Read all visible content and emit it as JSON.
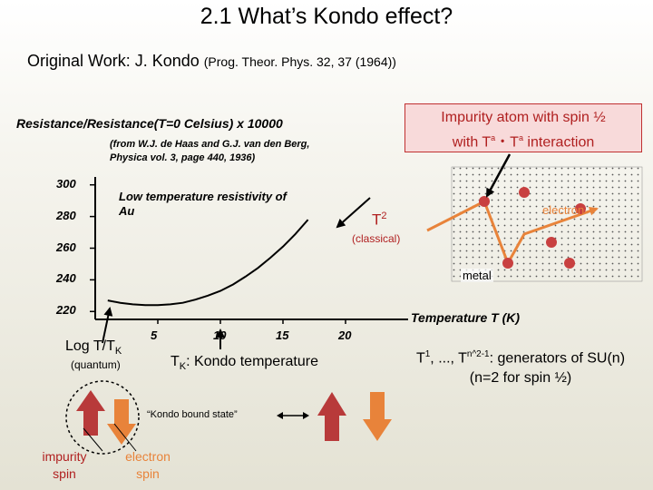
{
  "slide": {
    "title": "2.1 What’s Kondo effect?",
    "original_work": "Original Work: J. Kondo",
    "original_ref": "(Prog. Theor. Phys. 32, 37 (1964))"
  },
  "callout": {
    "line1": "Impurity atom with spin ½",
    "line2_prefix": "with T",
    "line2_mid": "・T",
    "line2_suffix": " interaction",
    "sup_a": "a"
  },
  "chart_data": {
    "type": "line",
    "title": "Resistance/Resistance(T=0 Celsius) x 10000",
    "source_line1": "(from W.J. de Haas and G.J. van den Berg,",
    "source_line2": "Physica vol. 3, page 440, 1936)",
    "annotation_line1": "Low temperature resistivity of",
    "annotation_line2": "Au",
    "xlabel": "Temperature T (K)",
    "ylabel": "",
    "x_ticks": [
      "5",
      "10",
      "15",
      "20"
    ],
    "y_ticks": [
      "300",
      "280",
      "260",
      "240",
      "220"
    ],
    "xlim": [
      0,
      25
    ],
    "ylim": [
      215,
      305
    ],
    "grid": false,
    "series": [
      {
        "x": [
          1,
          2,
          3,
          4,
          5,
          6,
          7,
          8,
          9,
          10,
          11,
          12,
          13,
          14,
          15,
          16,
          17
        ],
        "y": [
          227,
          225.5,
          224.5,
          224,
          224,
          224.5,
          225.5,
          227.5,
          230,
          233,
          237,
          242,
          247.5,
          254,
          261,
          269,
          278
        ]
      }
    ],
    "markers": [
      10
    ]
  },
  "labels": {
    "t2": "T",
    "t2_sup": "2",
    "classical": "(classical)",
    "metal": "metal",
    "electron": "electron",
    "log_t": "Log T/T",
    "log_t_sub": "K",
    "quantum": "(quantum)",
    "tk": "T",
    "tk_sub": "K",
    "tk_rest": ": Kondo temperature",
    "gen_line1_a": "T",
    "gen_line1_sup1": "1",
    "gen_line1_b": ", ..., T",
    "gen_line1_sup2": "n^2-1",
    "gen_line1_c": ": generators of SU(n)",
    "gen_line2": "(n=2 for spin ½)",
    "bound_state": "“Kondo bound state”",
    "impurity_spin_1": "impurity",
    "impurity_spin_2": "spin",
    "electron_spin_1": "electron",
    "electron_spin_2": "spin"
  },
  "colors": {
    "impurity": "#b83a3a",
    "electron": "#e8833a",
    "callout_border": "#c03030"
  }
}
